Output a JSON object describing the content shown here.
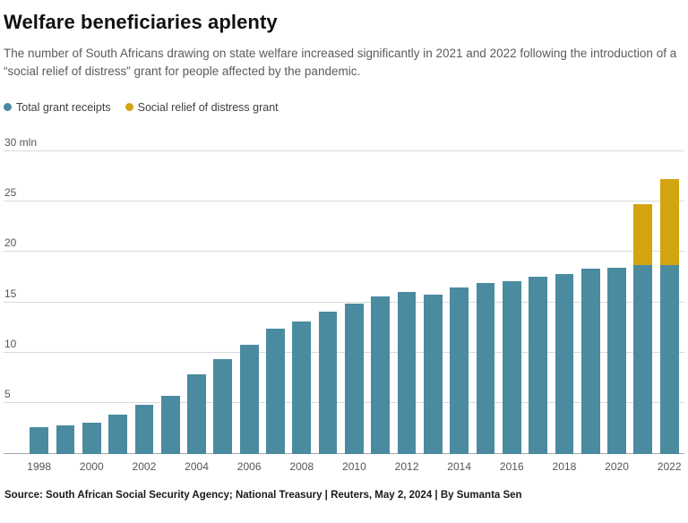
{
  "header": {
    "title": "Welfare beneficiaries aplenty",
    "subtitle": "The number of South Africans drawing on state welfare increased significantly in 2021 and 2022 following the introduction of a “social relief of distress” grant for people affected by the pandemic."
  },
  "chart_data": {
    "type": "bar",
    "stacked": true,
    "title": "Welfare beneficiaries aplenty",
    "categories": [
      "1998",
      "1999",
      "2000",
      "2001",
      "2002",
      "2003",
      "2004",
      "2005",
      "2006",
      "2007",
      "2008",
      "2009",
      "2010",
      "2011",
      "2012",
      "2013",
      "2014",
      "2015",
      "2016",
      "2017",
      "2018",
      "2019",
      "2020",
      "2021",
      "2022"
    ],
    "series": [
      {
        "name": "Total grant receipts",
        "color": "#4a8ba0",
        "values": [
          2.6,
          2.8,
          3.1,
          3.9,
          4.8,
          5.7,
          7.9,
          9.4,
          10.8,
          12.4,
          13.1,
          14.1,
          14.9,
          15.6,
          16.0,
          15.8,
          16.5,
          16.9,
          17.1,
          17.5,
          17.8,
          18.3,
          18.4,
          18.7,
          18.7
        ]
      },
      {
        "name": "Social relief of distress grant",
        "color": "#d3a410",
        "values": [
          0,
          0,
          0,
          0,
          0,
          0,
          0,
          0,
          0,
          0,
          0,
          0,
          0,
          0,
          0,
          0,
          0,
          0,
          0,
          0,
          0,
          0,
          0,
          6.0,
          8.5
        ]
      }
    ],
    "ylim": [
      0,
      30
    ],
    "ytick_step": 5,
    "ytick_top_label": "30 mln",
    "xticks": [
      "1998",
      "2000",
      "2002",
      "2004",
      "2006",
      "2008",
      "2010",
      "2012",
      "2014",
      "2016",
      "2018",
      "2020",
      "2022"
    ],
    "grid": "horizontal",
    "legend_position": "top-left"
  },
  "footer": {
    "source": "Source: South African Social Security Agency; National Treasury | Reuters, May 2, 2024 | By Sumanta Sen"
  }
}
